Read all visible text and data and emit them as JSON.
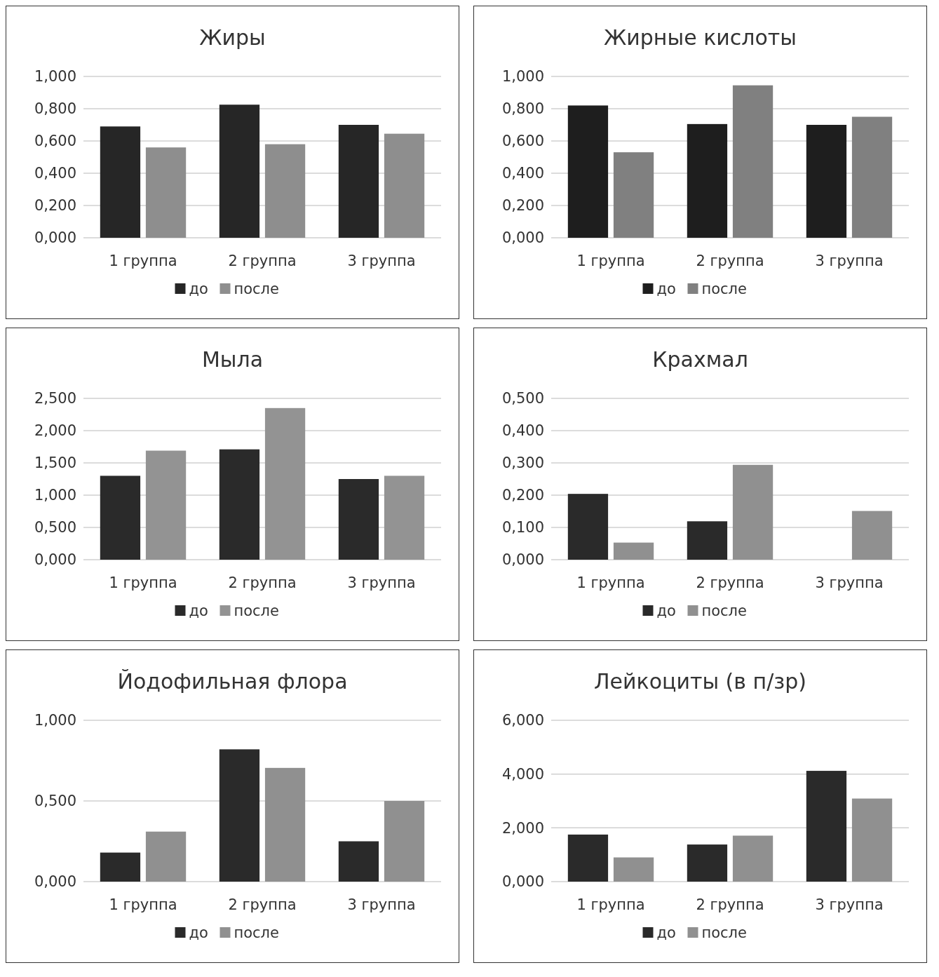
{
  "chart_data": [
    {
      "type": "bar",
      "title": "Жиры",
      "categories": [
        "1 группа",
        "2 группа",
        "3 группа"
      ],
      "series": [
        {
          "name": "до",
          "color": "#262626",
          "values": [
            0.69,
            0.825,
            0.7
          ]
        },
        {
          "name": "после",
          "color": "#8e8e8e",
          "values": [
            0.56,
            0.58,
            0.645
          ]
        }
      ],
      "ylim": [
        0,
        1
      ],
      "yticks": [
        {
          "value": 0,
          "label": "0,000"
        },
        {
          "value": 0.2,
          "label": "0,200"
        },
        {
          "value": 0.4,
          "label": "0,400"
        },
        {
          "value": 0.6,
          "label": "0,600"
        },
        {
          "value": 0.8,
          "label": "0,800"
        },
        {
          "value": 1,
          "label": "1,000"
        }
      ],
      "grid": "y",
      "legend": "bottom"
    },
    {
      "type": "bar",
      "title": "Жирные кислоты",
      "categories": [
        "1 группа",
        "2 группа",
        "3 группа"
      ],
      "series": [
        {
          "name": "до",
          "color": "#1e1e1e",
          "values": [
            0.82,
            0.705,
            0.7
          ]
        },
        {
          "name": "после",
          "color": "#808080",
          "values": [
            0.53,
            0.945,
            0.75
          ]
        }
      ],
      "ylim": [
        0,
        1
      ],
      "yticks": [
        {
          "value": 0,
          "label": "0,000"
        },
        {
          "value": 0.2,
          "label": "0,200"
        },
        {
          "value": 0.4,
          "label": "0,400"
        },
        {
          "value": 0.6,
          "label": "0,600"
        },
        {
          "value": 0.8,
          "label": "0,800"
        },
        {
          "value": 1,
          "label": "1,000"
        }
      ],
      "grid": "y",
      "legend": "bottom"
    },
    {
      "type": "bar",
      "title": "Мыла",
      "categories": [
        "1 группа",
        "2 группа",
        "3 группа"
      ],
      "series": [
        {
          "name": "до",
          "color": "#2a2a2a",
          "values": [
            1.3,
            1.71,
            1.25
          ]
        },
        {
          "name": "после",
          "color": "#939393",
          "values": [
            1.69,
            2.35,
            1.3
          ]
        }
      ],
      "ylim": [
        0,
        2.5
      ],
      "yticks": [
        {
          "value": 0,
          "label": "0,000"
        },
        {
          "value": 0.5,
          "label": "0,500"
        },
        {
          "value": 1,
          "label": "1,000"
        },
        {
          "value": 1.5,
          "label": "1,500"
        },
        {
          "value": 2,
          "label": "2,000"
        },
        {
          "value": 2.5,
          "label": "2,500"
        }
      ],
      "grid": "y",
      "legend": "bottom"
    },
    {
      "type": "bar",
      "title": "Крахмал",
      "categories": [
        "1 группа",
        "2 группа",
        "3 группа"
      ],
      "series": [
        {
          "name": "до",
          "color": "#2a2a2a",
          "values": [
            0.204,
            0.119,
            null
          ]
        },
        {
          "name": "после",
          "color": "#909090",
          "values": [
            0.053,
            0.294,
            0.151
          ]
        }
      ],
      "ylim": [
        0,
        0.5
      ],
      "yticks": [
        {
          "value": 0,
          "label": "0,000"
        },
        {
          "value": 0.1,
          "label": "0,100"
        },
        {
          "value": 0.2,
          "label": "0,200"
        },
        {
          "value": 0.3,
          "label": "0,300"
        },
        {
          "value": 0.4,
          "label": "0,400"
        },
        {
          "value": 0.5,
          "label": "0,500"
        }
      ],
      "grid": "y",
      "legend": "bottom"
    },
    {
      "type": "bar",
      "title": "Йодофильная флора",
      "categories": [
        "1 группа",
        "2 группа",
        "3 группа"
      ],
      "series": [
        {
          "name": "до",
          "color": "#2a2a2a",
          "values": [
            0.18,
            0.82,
            0.25
          ]
        },
        {
          "name": "после",
          "color": "#909090",
          "values": [
            0.31,
            0.705,
            0.5
          ]
        }
      ],
      "ylim": [
        0,
        1
      ],
      "yticks": [
        {
          "value": 0,
          "label": "0,000"
        },
        {
          "value": 0.5,
          "label": "0,500"
        },
        {
          "value": 1,
          "label": "1,000"
        }
      ],
      "grid": "y",
      "legend": "bottom"
    },
    {
      "type": "bar",
      "title": "Лейкоциты (в п/зр)",
      "categories": [
        "1 группа",
        "2 группа",
        "3 группа"
      ],
      "series": [
        {
          "name": "до",
          "color": "#2a2a2a",
          "values": [
            1.75,
            1.38,
            4.12
          ]
        },
        {
          "name": "после",
          "color": "#909090",
          "values": [
            0.9,
            1.71,
            3.09
          ]
        }
      ],
      "ylim": [
        0,
        6
      ],
      "yticks": [
        {
          "value": 0,
          "label": "0,000"
        },
        {
          "value": 2,
          "label": "2,000"
        },
        {
          "value": 4,
          "label": "4,000"
        },
        {
          "value": 6,
          "label": "6,000"
        }
      ],
      "grid": "y",
      "legend": "bottom"
    }
  ]
}
